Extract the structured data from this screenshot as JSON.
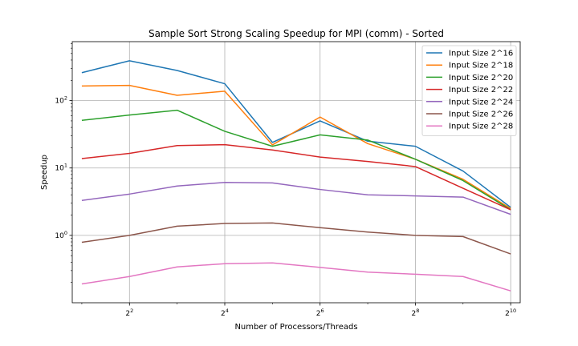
{
  "chart_data": {
    "type": "line",
    "title": "Sample Sort Strong Scaling Speedup for MPI (comm) - Sorted",
    "xlabel": "Number of Processors/Threads",
    "ylabel": "Speedup",
    "x_scale": "log2",
    "y_scale": "log10",
    "xlim": [
      1.74,
      1176
    ],
    "ylim": [
      0.1,
      750
    ],
    "x_ticks": [
      {
        "value": 4,
        "base": "2",
        "exp": "2"
      },
      {
        "value": 16,
        "base": "2",
        "exp": "4"
      },
      {
        "value": 64,
        "base": "2",
        "exp": "6"
      },
      {
        "value": 256,
        "base": "2",
        "exp": "8"
      },
      {
        "value": 1024,
        "base": "2",
        "exp": "10"
      }
    ],
    "y_ticks": [
      {
        "value": 1,
        "base": "10",
        "exp": "0"
      },
      {
        "value": 10,
        "base": "10",
        "exp": "1"
      },
      {
        "value": 100,
        "base": "10",
        "exp": "2"
      }
    ],
    "grid": true,
    "legend_position": "top-right",
    "x": [
      2,
      4,
      8,
      16,
      32,
      64,
      128,
      256,
      512,
      1024
    ],
    "series": [
      {
        "name": "Input Size 2^16",
        "color": "#1f77b4",
        "values": [
          260,
          390,
          280,
          178,
          24,
          50,
          25,
          21,
          9,
          2.6
        ]
      },
      {
        "name": "Input Size 2^18",
        "color": "#ff7f0e",
        "values": [
          165,
          168,
          120,
          138,
          22,
          57,
          23,
          13.5,
          6.8,
          2.5
        ]
      },
      {
        "name": "Input Size 2^20",
        "color": "#2ca02c",
        "values": [
          51,
          61,
          72,
          35,
          21,
          31,
          26,
          13.5,
          6.5,
          2.4
        ]
      },
      {
        "name": "Input Size 2^22",
        "color": "#d62728",
        "values": [
          13.8,
          16.5,
          21.5,
          22.2,
          18.5,
          14.5,
          12.5,
          10.5,
          5,
          2.4
        ]
      },
      {
        "name": "Input Size 2^24",
        "color": "#9467bd",
        "values": [
          3.3,
          4.1,
          5.4,
          6.1,
          6.0,
          4.8,
          4.0,
          3.85,
          3.7,
          2.05
        ]
      },
      {
        "name": "Input Size 2^26",
        "color": "#8c564b",
        "values": [
          0.79,
          1.0,
          1.37,
          1.5,
          1.53,
          1.3,
          1.12,
          1.0,
          0.96,
          0.53
        ]
      },
      {
        "name": "Input Size 2^28",
        "color": "#e377c2",
        "values": [
          0.19,
          0.245,
          0.34,
          0.38,
          0.39,
          0.335,
          0.285,
          0.265,
          0.245,
          0.15
        ]
      }
    ]
  }
}
